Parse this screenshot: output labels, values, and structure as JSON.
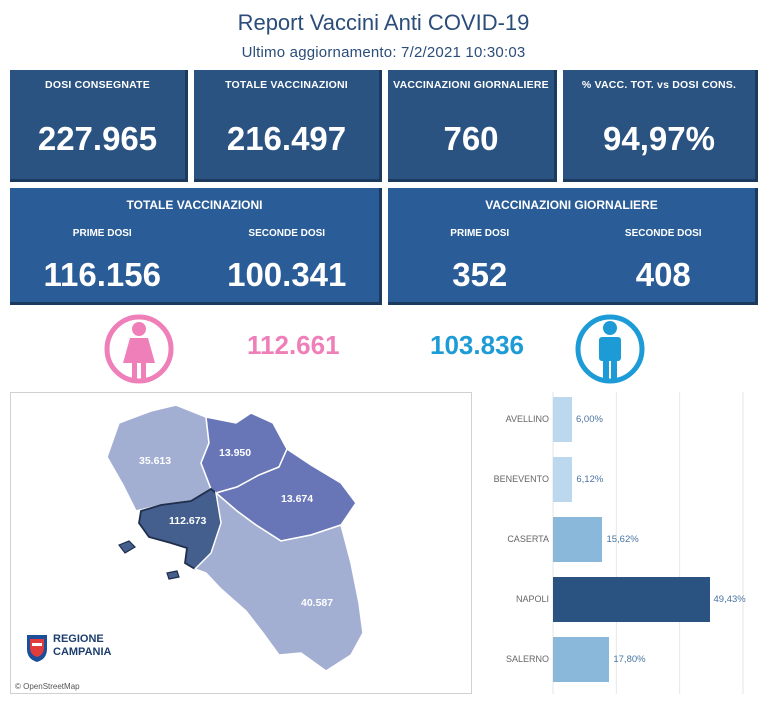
{
  "header": {
    "title": "Report Vaccini Anti COVID-19",
    "subtitle": "Ultimo aggiornamento: 7/2/2021  10:30:03"
  },
  "kpis": [
    {
      "label": "DOSI  CONSEGNATE",
      "value": "227.965"
    },
    {
      "label": "TOTALE VACCINAZIONI",
      "value": "216.497"
    },
    {
      "label": "VACCINAZIONI GIORNALIERE",
      "value": "760"
    },
    {
      "label": "% VACC. TOT. vs DOSI CONS.",
      "value": "94,97%"
    }
  ],
  "totale": {
    "title": "TOTALE VACCINAZIONI",
    "first_label": "PRIME DOSI",
    "first_value": "116.156",
    "second_label": "SECONDE DOSI",
    "second_value": "100.341"
  },
  "giornaliere": {
    "title": "VACCINAZIONI GIORNALIERE",
    "first_label": "PRIME DOSI",
    "first_value": "352",
    "second_label": "SECONDE DOSI",
    "second_value": "408"
  },
  "gender": {
    "female_value": "112.661",
    "female_color": "#ef7fb8",
    "female_icon": "female-icon",
    "male_value": "103.836",
    "male_color": "#1c9bd6",
    "male_icon": "male-icon"
  },
  "map": {
    "labels": {
      "caserta": "35.613",
      "benevento": "13.950",
      "avellino": "13.674",
      "napoli": "112.673",
      "salerno": "40.587"
    },
    "logo_line1": "REGIONE",
    "logo_line2": "CAMPANIA",
    "attribution": "© OpenStreetMap"
  },
  "chart_data": {
    "type": "bar",
    "orientation": "horizontal",
    "categories": [
      "AVELLINO",
      "BENEVENTO",
      "CASERTA",
      "NAPOLI",
      "SALERNO"
    ],
    "values": [
      6.0,
      6.12,
      15.62,
      49.43,
      17.8
    ],
    "value_labels": [
      "6,00%",
      "6,12%",
      "15,62%",
      "49,43%",
      "17,80%"
    ],
    "colors": [
      "#bcd8ef",
      "#bcd8ef",
      "#8ab8db",
      "#2a5382",
      "#8ab8db"
    ],
    "xlim": [
      0,
      60
    ],
    "grid": true
  }
}
